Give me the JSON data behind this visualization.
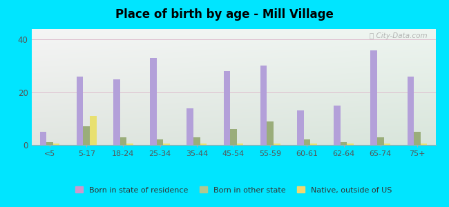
{
  "title": "Place of birth by age - Mill Village",
  "categories": [
    "<5",
    "5-17",
    "18-24",
    "25-34",
    "35-44",
    "45-54",
    "55-59",
    "60-61",
    "62-64",
    "65-74",
    "75+"
  ],
  "born_in_state": [
    5,
    26,
    25,
    33,
    14,
    28,
    30,
    13,
    15,
    36,
    26
  ],
  "born_other_state": [
    1,
    7,
    3,
    2,
    3,
    6,
    9,
    2,
    1,
    3,
    5
  ],
  "native_outside_us": [
    0.5,
    11,
    0.5,
    0.5,
    0.5,
    0.5,
    0.5,
    0.5,
    0.5,
    0.5,
    0.5
  ],
  "color_state": "#b3a0d9",
  "color_other": "#9aad7a",
  "color_native": "#e8e070",
  "outer_bg": "#00e5ff",
  "ylim": [
    0,
    44
  ],
  "yticks": [
    0,
    20,
    40
  ],
  "bar_width": 0.18,
  "legend_labels": [
    "Born in state of residence",
    "Born in other state",
    "Native, outside of US"
  ],
  "legend_colors": [
    "#cc99cc",
    "#b0c890",
    "#f0d870"
  ]
}
